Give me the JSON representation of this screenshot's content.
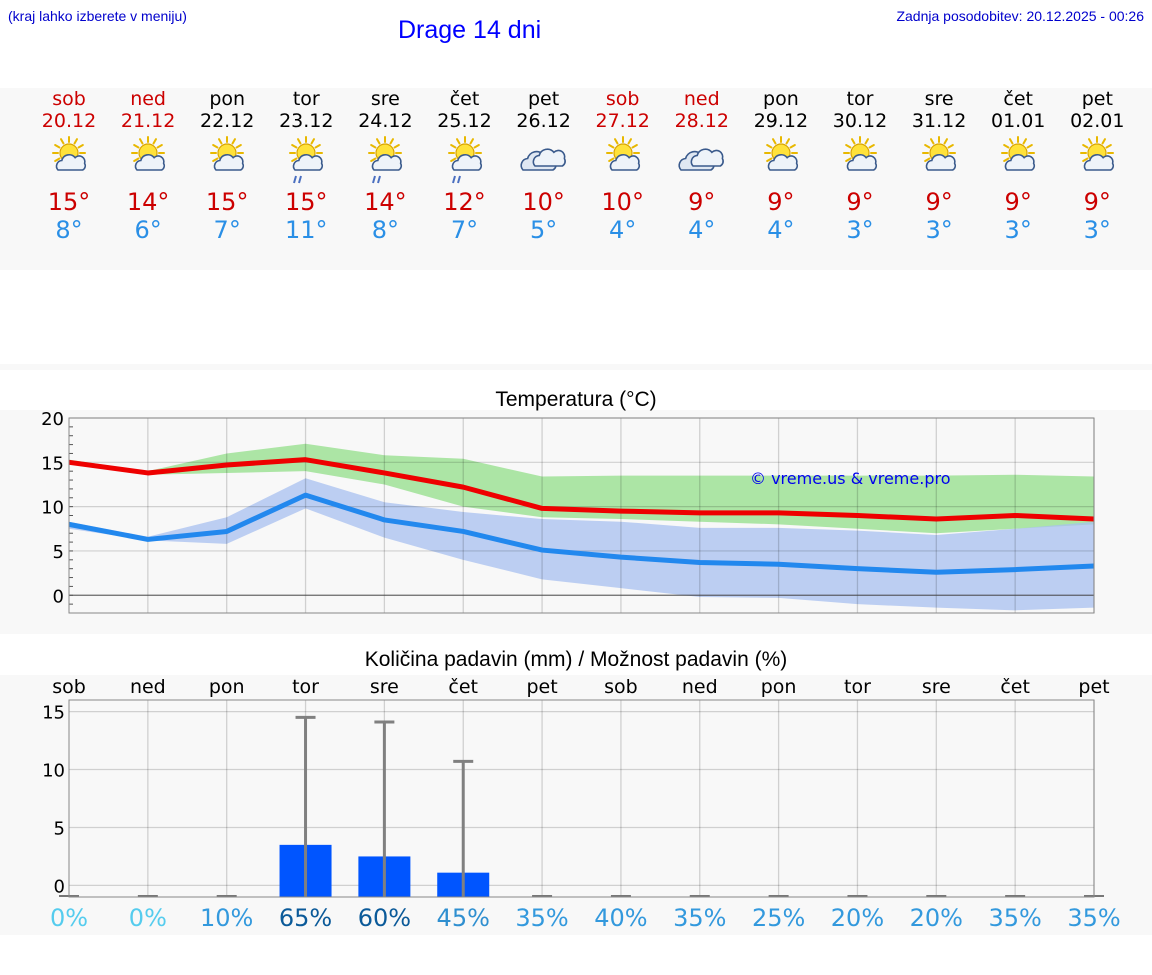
{
  "header": {
    "hint": "(kraj lahko izberete v meniju)",
    "title": "Drage 14 dni",
    "updated": "Zadnja posodobitev: 20.12.2025 - 00:26"
  },
  "days": [
    {
      "name": "sob",
      "date": "20.12",
      "icon": "sun-cloud-icon",
      "max": "15°",
      "min": "8°",
      "weekend": true
    },
    {
      "name": "ned",
      "date": "21.12",
      "icon": "sun-cloud-icon",
      "max": "14°",
      "min": "6°",
      "weekend": true
    },
    {
      "name": "pon",
      "date": "22.12",
      "icon": "sun-cloud-icon",
      "max": "15°",
      "min": "7°",
      "weekend": false
    },
    {
      "name": "tor",
      "date": "23.12",
      "icon": "sun-cloud-rain-icon",
      "max": "15°",
      "min": "11°",
      "weekend": false
    },
    {
      "name": "sre",
      "date": "24.12",
      "icon": "sun-cloud-rain-icon",
      "max": "14°",
      "min": "8°",
      "weekend": false
    },
    {
      "name": "čet",
      "date": "25.12",
      "icon": "sun-cloud-rain-icon",
      "max": "12°",
      "min": "7°",
      "weekend": false
    },
    {
      "name": "pet",
      "date": "26.12",
      "icon": "cloud-icon",
      "max": "10°",
      "min": "5°",
      "weekend": false
    },
    {
      "name": "sob",
      "date": "27.12",
      "icon": "sun-cloud-icon",
      "max": "10°",
      "min": "4°",
      "weekend": true
    },
    {
      "name": "ned",
      "date": "28.12",
      "icon": "cloud-icon",
      "max": "9°",
      "min": "4°",
      "weekend": true
    },
    {
      "name": "pon",
      "date": "29.12",
      "icon": "sun-cloud-icon",
      "max": "9°",
      "min": "4°",
      "weekend": false
    },
    {
      "name": "tor",
      "date": "30.12",
      "icon": "sun-cloud-icon",
      "max": "9°",
      "min": "3°",
      "weekend": false
    },
    {
      "name": "sre",
      "date": "31.12",
      "icon": "sun-cloud-icon",
      "max": "9°",
      "min": "3°",
      "weekend": false
    },
    {
      "name": "čet",
      "date": "01.01",
      "icon": "sun-cloud-icon",
      "max": "9°",
      "min": "3°",
      "weekend": false
    },
    {
      "name": "pet",
      "date": "02.01",
      "icon": "sun-cloud-icon",
      "max": "9°",
      "min": "3°",
      "weekend": false
    }
  ],
  "colors": {
    "max": "#ee0000",
    "min": "#2288ee",
    "max_band": "#a8e4a0",
    "min_band": "#a8c0f0",
    "overlap": "#88c8a8",
    "rain_bar": "#0055ff",
    "whisker": "#808080"
  },
  "chart_data": [
    {
      "type": "line",
      "title": "Temperatura (°C)",
      "watermark": "© vreme.us & vreme.pro",
      "x": [
        0,
        1,
        2,
        3,
        4,
        5,
        6,
        7,
        8,
        9,
        10,
        11,
        12,
        13
      ],
      "ylim": [
        -2,
        20
      ],
      "yticks": [
        0,
        5,
        10,
        15,
        20
      ],
      "grid": true,
      "series": [
        {
          "name": "max",
          "values": [
            15.0,
            13.8,
            14.7,
            15.3,
            13.8,
            12.2,
            9.8,
            9.5,
            9.3,
            9.3,
            9.0,
            8.6,
            9.0,
            8.6
          ]
        },
        {
          "name": "min",
          "values": [
            8.0,
            6.3,
            7.2,
            11.3,
            8.5,
            7.2,
            5.1,
            4.3,
            3.7,
            3.5,
            3.0,
            2.6,
            2.9,
            3.3
          ]
        }
      ],
      "bands": [
        {
          "name": "max_range",
          "low": [
            14.8,
            13.6,
            13.8,
            14.0,
            12.5,
            10.0,
            8.8,
            8.6,
            8.3,
            8.0,
            7.5,
            7.0,
            7.5,
            8.0
          ],
          "high": [
            15.3,
            14.0,
            16.0,
            17.1,
            15.8,
            15.4,
            13.4,
            13.5,
            13.5,
            13.5,
            13.5,
            13.5,
            13.6,
            13.4
          ]
        },
        {
          "name": "min_range",
          "low": [
            7.5,
            6.2,
            5.8,
            9.8,
            6.5,
            4.0,
            1.8,
            0.8,
            -0.2,
            -0.3,
            -1.0,
            -1.4,
            -1.7,
            -1.4
          ],
          "high": [
            8.3,
            6.6,
            8.8,
            13.2,
            10.5,
            9.4,
            8.6,
            8.3,
            7.6,
            7.6,
            7.3,
            6.8,
            7.5,
            8.3
          ]
        }
      ]
    },
    {
      "type": "bar",
      "title": "Količina padavin (mm) / Možnost padavin (%)",
      "categories": [
        "sob",
        "ned",
        "pon",
        "tor",
        "sre",
        "čet",
        "pet",
        "sob",
        "ned",
        "pon",
        "tor",
        "sre",
        "čet",
        "pet"
      ],
      "ylim": [
        -1,
        16
      ],
      "yticks": [
        0,
        5,
        10,
        15
      ],
      "values": [
        0,
        0,
        0,
        3.5,
        2.5,
        1.1,
        0,
        0,
        0,
        0,
        0,
        0,
        0,
        0
      ],
      "whisker_max": [
        0,
        0,
        0,
        14.5,
        14.1,
        10.7,
        0,
        0,
        0,
        0,
        0,
        0,
        0,
        0
      ],
      "probability": [
        "0%",
        "0%",
        "10%",
        "65%",
        "60%",
        "45%",
        "35%",
        "40%",
        "35%",
        "25%",
        "20%",
        "20%",
        "35%",
        "35%"
      ],
      "probability_colors": [
        "#55ccee",
        "#55ccee",
        "#3399dd",
        "#0b5a99",
        "#0b5a99",
        "#2f8fd0",
        "#3399dd",
        "#3399dd",
        "#3399dd",
        "#3399dd",
        "#3399dd",
        "#3399dd",
        "#3399dd",
        "#3399dd"
      ]
    }
  ]
}
